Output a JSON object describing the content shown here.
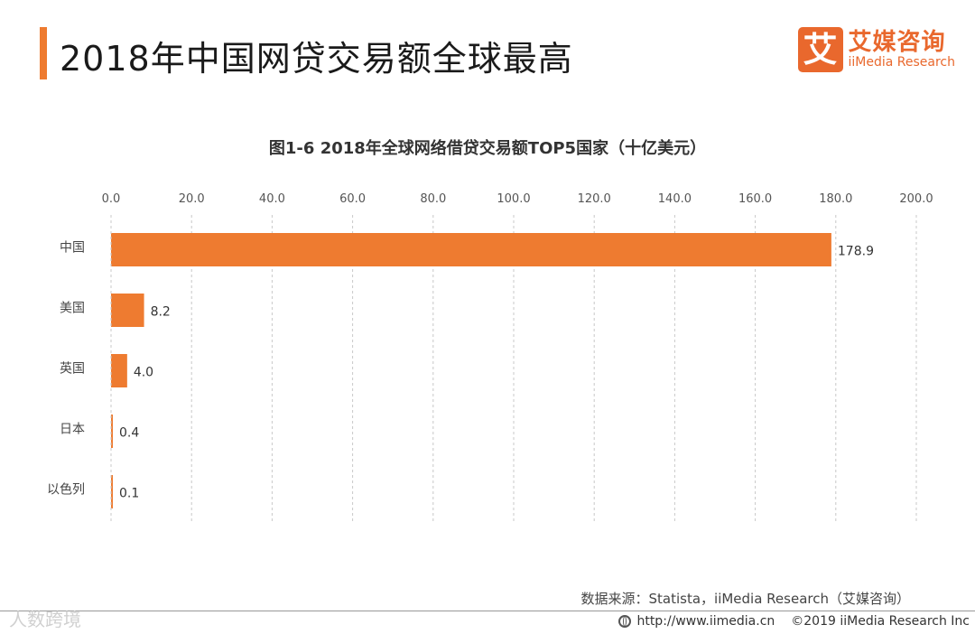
{
  "header": {
    "title": "2018年中国网贷交易额全球最高",
    "brand_mark": "艾",
    "brand_cn": "艾媒咨询",
    "brand_en": "iiMedia Research"
  },
  "chart_data": {
    "type": "bar",
    "orientation": "horizontal",
    "title": "图1-6 2018年全球网络借贷交易额TOP5国家（十亿美元）",
    "categories": [
      "中国",
      "美国",
      "英国",
      "日本",
      "以色列"
    ],
    "values": [
      178.9,
      8.2,
      4.0,
      0.4,
      0.1
    ],
    "value_labels": [
      "178.9",
      "8.2",
      "4.0",
      "0.4",
      "0.1"
    ],
    "xlim": [
      0,
      200
    ],
    "x_ticks": [
      "0.0",
      "20.0",
      "40.0",
      "60.0",
      "80.0",
      "100.0",
      "120.0",
      "140.0",
      "160.0",
      "180.0",
      "200.0"
    ],
    "x_axis_position": "top",
    "grid": "vertical-dashed",
    "bar_color": "#ee7b30"
  },
  "footer": {
    "source": "数据来源：Statista，iiMedia Research（艾媒咨询）",
    "url": "http://www.iimedia.cn",
    "copyright": "©2019 iiMedia Research Inc",
    "watermark": "人数跨境"
  }
}
